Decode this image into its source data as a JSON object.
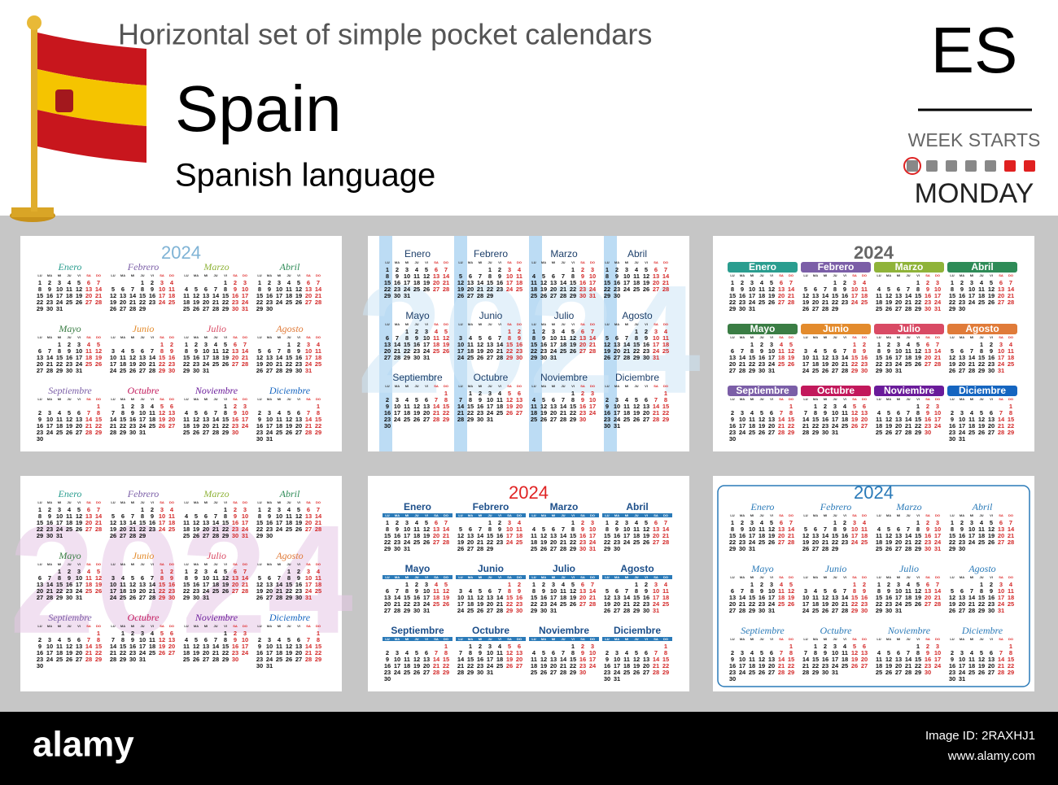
{
  "header": {
    "title": "Horizontal set of simple pocket calendars",
    "country": "Spain",
    "language": "Spanish language",
    "code": "ES",
    "week_starts": "WEEK STARTS",
    "first_day": "MONDAY"
  },
  "weekdays": [
    "LU",
    "MA",
    "MI",
    "JU",
    "VI",
    "SA",
    "DO"
  ],
  "months": [
    {
      "name": "Enero",
      "days": [
        1,
        2,
        3,
        4,
        5,
        6,
        7,
        8,
        9,
        10,
        11,
        12,
        13,
        14,
        15,
        16,
        17,
        18,
        19,
        20,
        21,
        22,
        23,
        24,
        25,
        26,
        27,
        28,
        29,
        30,
        31
      ]
    },
    {
      "name": "Febrero",
      "days": [
        null,
        null,
        null,
        1,
        2,
        3,
        4,
        5,
        6,
        7,
        8,
        9,
        10,
        11,
        12,
        13,
        14,
        15,
        16,
        17,
        18,
        19,
        20,
        21,
        22,
        23,
        24,
        25,
        26,
        27,
        28,
        29
      ]
    },
    {
      "name": "Marzo",
      "days": [
        null,
        null,
        null,
        null,
        1,
        2,
        3,
        4,
        5,
        6,
        7,
        8,
        9,
        10,
        11,
        12,
        13,
        14,
        15,
        16,
        17,
        18,
        19,
        20,
        21,
        22,
        23,
        24,
        25,
        26,
        27,
        28,
        29,
        30,
        31
      ]
    },
    {
      "name": "Abril",
      "days": [
        1,
        2,
        3,
        4,
        5,
        6,
        7,
        8,
        9,
        10,
        11,
        12,
        13,
        14,
        15,
        16,
        17,
        18,
        19,
        20,
        21,
        22,
        23,
        24,
        25,
        26,
        27,
        28,
        29,
        30
      ]
    },
    {
      "name": "Mayo",
      "days": [
        null,
        null,
        1,
        2,
        3,
        4,
        5,
        6,
        7,
        8,
        9,
        10,
        11,
        12,
        13,
        14,
        15,
        16,
        17,
        18,
        19,
        20,
        21,
        22,
        23,
        24,
        25,
        26,
        27,
        28,
        29,
        30,
        31
      ]
    },
    {
      "name": "Junio",
      "days": [
        null,
        null,
        null,
        null,
        null,
        1,
        2,
        3,
        4,
        5,
        6,
        7,
        8,
        9,
        10,
        11,
        12,
        13,
        14,
        15,
        16,
        17,
        18,
        19,
        20,
        21,
        22,
        23,
        24,
        25,
        26,
        27,
        28,
        29,
        30
      ]
    },
    {
      "name": "Julio",
      "days": [
        1,
        2,
        3,
        4,
        5,
        6,
        7,
        8,
        9,
        10,
        11,
        12,
        13,
        14,
        15,
        16,
        17,
        18,
        19,
        20,
        21,
        22,
        23,
        24,
        25,
        26,
        27,
        28,
        29,
        30,
        31
      ]
    },
    {
      "name": "Agosto",
      "days": [
        null,
        null,
        null,
        1,
        2,
        3,
        4,
        5,
        6,
        7,
        8,
        9,
        10,
        11,
        12,
        13,
        14,
        15,
        16,
        17,
        18,
        19,
        20,
        21,
        22,
        23,
        24,
        25,
        26,
        27,
        28,
        29,
        30,
        31
      ]
    },
    {
      "name": "Septiembre",
      "days": [
        null,
        null,
        null,
        null,
        null,
        null,
        1,
        2,
        3,
        4,
        5,
        6,
        7,
        8,
        9,
        10,
        11,
        12,
        13,
        14,
        15,
        16,
        17,
        18,
        19,
        20,
        21,
        22,
        23,
        24,
        25,
        26,
        27,
        28,
        29,
        30
      ]
    },
    {
      "name": "Octubre",
      "days": [
        null,
        1,
        2,
        3,
        4,
        5,
        6,
        7,
        8,
        9,
        10,
        11,
        12,
        13,
        14,
        15,
        16,
        17,
        18,
        19,
        20,
        21,
        22,
        23,
        24,
        25,
        26,
        27,
        28,
        29,
        30,
        31
      ]
    },
    {
      "name": "Noviembre",
      "days": [
        null,
        null,
        null,
        null,
        1,
        2,
        3,
        4,
        5,
        6,
        7,
        8,
        9,
        10,
        11,
        12,
        13,
        14,
        15,
        16,
        17,
        18,
        19,
        20,
        21,
        22,
        23,
        24,
        25,
        26,
        27,
        28,
        29,
        30
      ]
    },
    {
      "name": "Diciembre",
      "days": [
        null,
        null,
        null,
        null,
        null,
        null,
        1,
        2,
        3,
        4,
        5,
        6,
        7,
        8,
        9,
        10,
        11,
        12,
        13,
        14,
        15,
        16,
        17,
        18,
        19,
        20,
        21,
        22,
        23,
        24,
        25,
        26,
        27,
        28,
        29,
        30,
        31
      ]
    }
  ],
  "calendars": [
    {
      "year": "2024"
    },
    {
      "watermark": "2024"
    },
    {
      "year": "2024"
    },
    {
      "watermark": "2024"
    },
    {
      "year": "2024"
    },
    {
      "year": "2024"
    }
  ],
  "footer": {
    "brand": "alamy",
    "image_id": "Image ID: 2RAXHJ1",
    "site": "www.alamy.com"
  }
}
